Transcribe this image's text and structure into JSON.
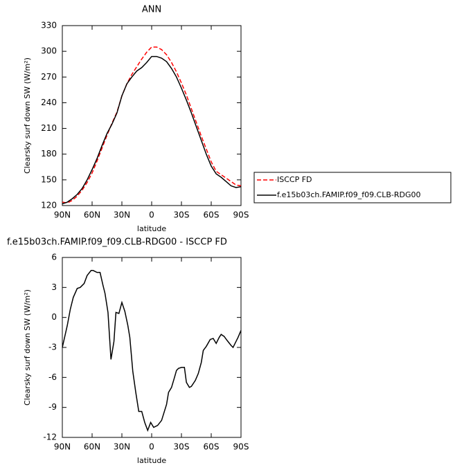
{
  "chart_data": [
    {
      "type": "line",
      "title": "ANN",
      "xlabel": "latitude",
      "ylabel": "Clearsky surf down SW (W/m²)",
      "x": [
        90,
        85,
        80,
        75,
        70,
        65,
        60,
        55,
        50,
        45,
        40,
        35,
        30,
        25,
        20,
        15,
        10,
        5,
        0,
        -5,
        -10,
        -15,
        -20,
        -25,
        -30,
        -35,
        -40,
        -45,
        -50,
        -55,
        -60,
        -65,
        -70,
        -75,
        -80,
        -85,
        -90
      ],
      "series": [
        {
          "name": "ISCCP FD",
          "color": "#ff0000",
          "style": "dashed",
          "values": [
            124,
            123,
            126,
            131,
            138,
            147,
            158,
            172,
            187,
            202,
            216,
            229,
            248,
            262,
            273,
            282,
            291,
            299,
            305,
            305,
            302,
            296,
            287,
            276,
            263,
            249,
            233,
            217,
            201,
            186,
            171,
            160,
            156,
            152,
            148,
            144,
            143
          ]
        },
        {
          "name": "f.e15b03ch.FAMIP.f09_f09.CLB-RDG00",
          "color": "#000000",
          "style": "solid",
          "values": [
            122,
            124,
            128,
            133,
            140,
            150,
            162,
            175,
            190,
            204,
            215,
            228,
            248,
            262,
            270,
            277,
            281,
            287,
            294,
            294,
            292,
            288,
            280,
            270,
            257,
            243,
            228,
            212,
            196,
            180,
            166,
            157,
            153,
            148,
            143,
            141,
            142
          ]
        }
      ],
      "xlim": [
        90,
        -90
      ],
      "xticks": [
        {
          "value": 90,
          "label": "90N"
        },
        {
          "value": 60,
          "label": "60N"
        },
        {
          "value": 30,
          "label": "30N"
        },
        0,
        {
          "value": -30,
          "label": "30S"
        },
        {
          "value": -60,
          "label": "60S"
        },
        {
          "value": -90,
          "label": "90S"
        }
      ],
      "ylim": [
        120,
        330
      ],
      "yticks": [
        120,
        150,
        180,
        210,
        240,
        270,
        300,
        330
      ],
      "legend": "right"
    },
    {
      "type": "line",
      "title": "f.e15b03ch.FAMIP.f09_f09.CLB-RDG00 - ISCCP FD",
      "xlabel": "latitude",
      "ylabel": "Clearsky surf down SW (W/m²)",
      "x": [
        90,
        85,
        82,
        79,
        75,
        72,
        68,
        65,
        61,
        59,
        55,
        52,
        49,
        47,
        44,
        41,
        38,
        36,
        33,
        30,
        27,
        24,
        22,
        19,
        16,
        13,
        10,
        7,
        4,
        1,
        -2,
        -6,
        -10,
        -15,
        -17,
        -20,
        -23,
        -25,
        -27,
        -30,
        -33,
        -35,
        -38,
        -40,
        -44,
        -47,
        -50,
        -52,
        -55,
        -59,
        -62,
        -65,
        -68,
        -70,
        -73,
        -76,
        -80,
        -82,
        -84,
        -87,
        -90
      ],
      "series": [
        {
          "name": "f.e15b03ch.FAMIP.f09_f09.CLB-RDG00 - ISCCP FD",
          "color": "#000000",
          "style": "solid",
          "values": [
            -3,
            -0.8,
            0.8,
            2,
            2.9,
            3,
            3.4,
            4.2,
            4.7,
            4.7,
            4.5,
            4.5,
            3.2,
            2.4,
            0.5,
            -4.2,
            -2.4,
            0.5,
            0.4,
            1.5,
            0.6,
            -0.8,
            -2,
            -5.4,
            -7.5,
            -9.4,
            -9.4,
            -10.5,
            -11.3,
            -10.5,
            -11,
            -10.8,
            -10.3,
            -8.7,
            -7.5,
            -7,
            -6,
            -5.3,
            -5.1,
            -5,
            -5,
            -6.5,
            -7,
            -6.9,
            -6.3,
            -5.6,
            -4.5,
            -3.3,
            -2.9,
            -2.2,
            -2.1,
            -2.6,
            -2,
            -1.7,
            -1.9,
            -2.3,
            -2.8,
            -3,
            -2.6,
            -2,
            -1.3
          ]
        }
      ],
      "xlim": [
        90,
        -90
      ],
      "xticks": [
        {
          "value": 90,
          "label": "90N"
        },
        {
          "value": 60,
          "label": "60N"
        },
        {
          "value": 30,
          "label": "30N"
        },
        0,
        {
          "value": -30,
          "label": "30S"
        },
        {
          "value": -60,
          "label": "60S"
        },
        {
          "value": -90,
          "label": "90S"
        }
      ],
      "ylim": [
        -12,
        6
      ],
      "yticks": [
        -12,
        -9,
        -6,
        -3,
        0,
        3,
        6
      ]
    }
  ]
}
